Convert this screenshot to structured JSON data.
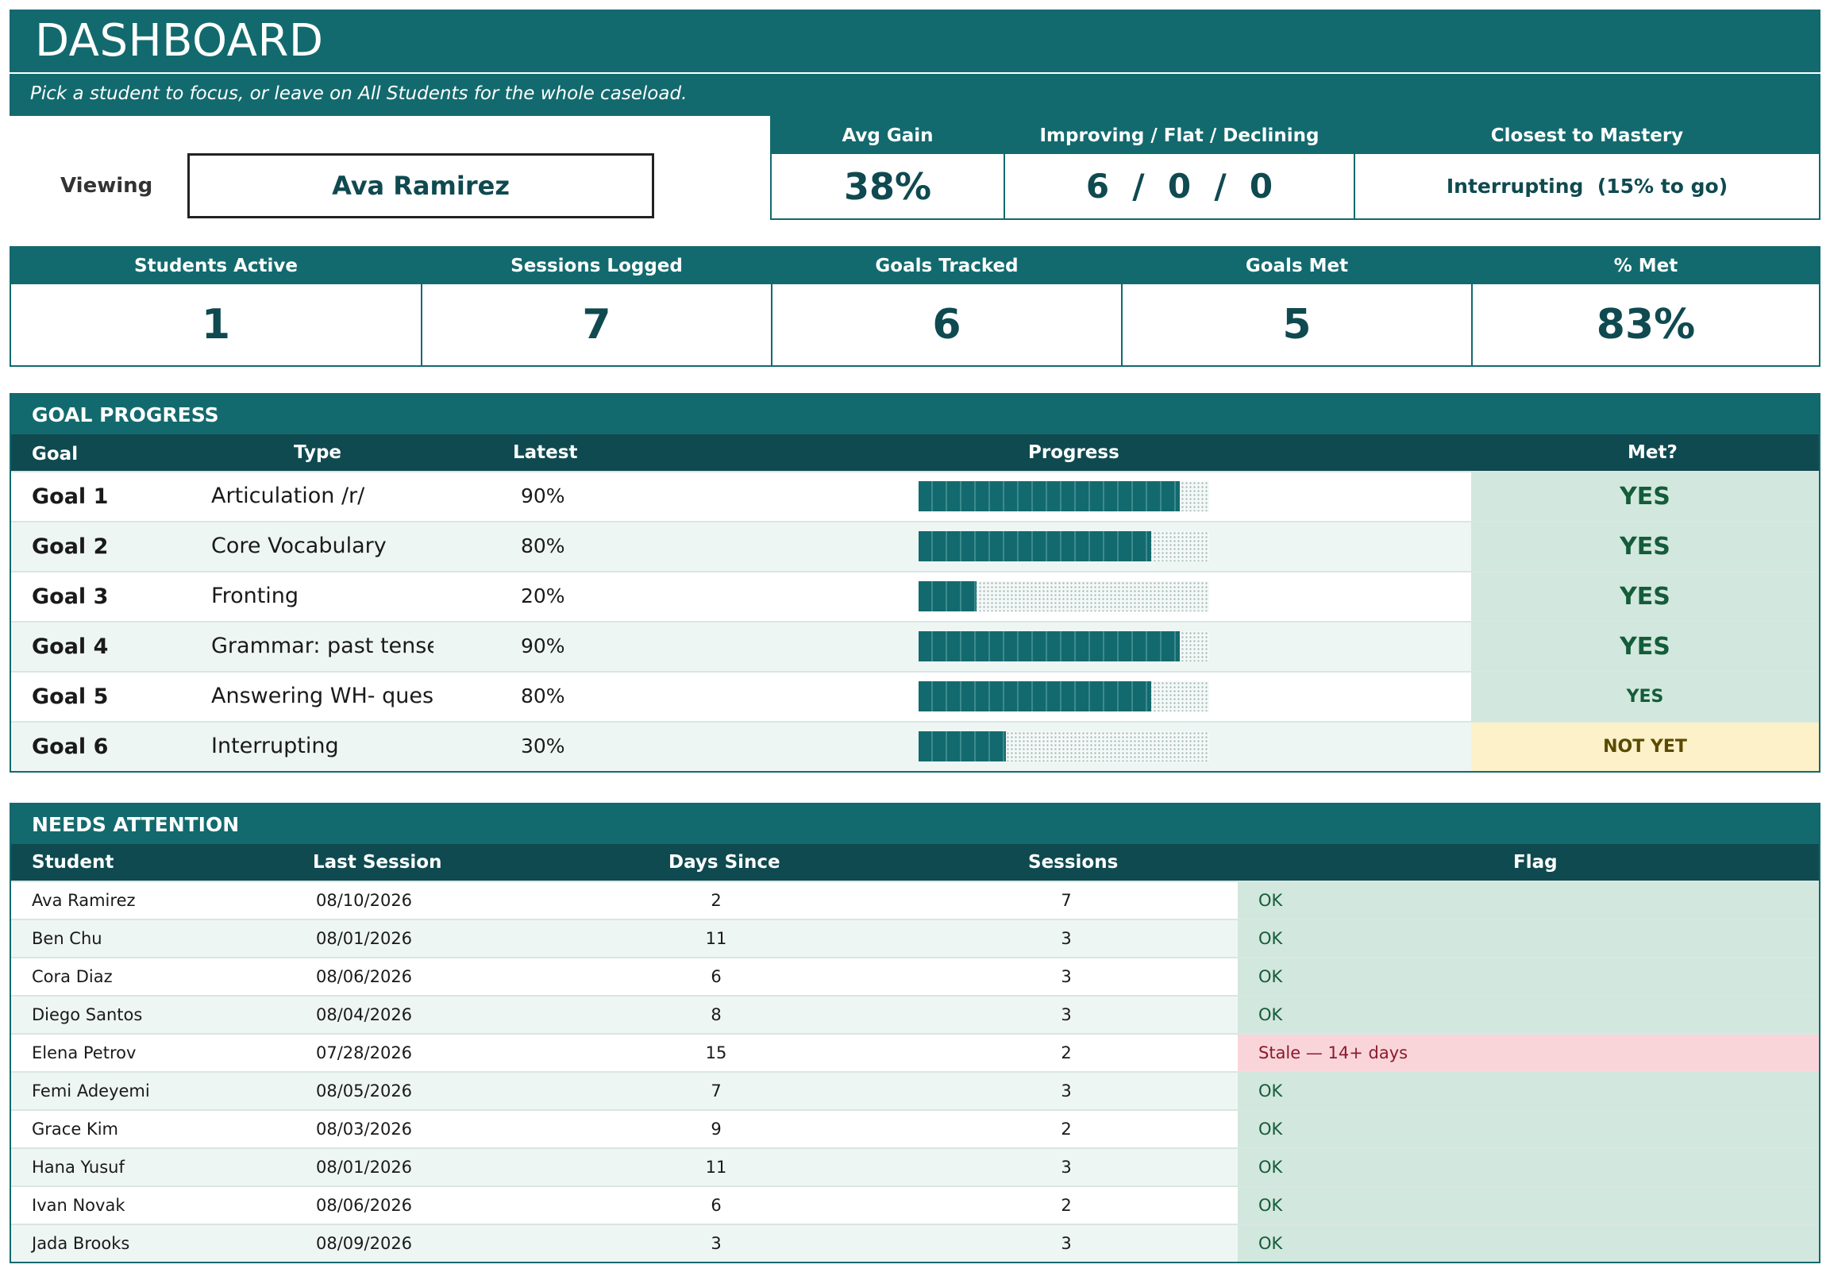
{
  "header": {
    "title": "DASHBOARD",
    "subtitle": "Pick a student to focus, or leave on All Students for the whole caseload."
  },
  "viewing": {
    "label": "Viewing",
    "value": "Ava Ramirez"
  },
  "kpis_top": [
    {
      "label": "Avg Gain",
      "value": "38%"
    },
    {
      "label": "Improving / Flat / Declining",
      "value": "6  /  0  /  0"
    },
    {
      "label": "Closest to Mastery",
      "value": "Interrupting  (15% to go)"
    }
  ],
  "stats": [
    {
      "label": "Students Active",
      "value": "1"
    },
    {
      "label": "Sessions Logged",
      "value": "7"
    },
    {
      "label": "Goals Tracked",
      "value": "6"
    },
    {
      "label": "Goals Met",
      "value": "5"
    },
    {
      "label": "% Met",
      "value": "83%"
    }
  ],
  "goal_progress": {
    "title": "GOAL PROGRESS",
    "columns": {
      "goal": "Goal",
      "type": "Type",
      "latest": "Latest",
      "progress": "Progress",
      "met": "Met?"
    },
    "rows": [
      {
        "goal": "Goal 1",
        "type": "Articulation /r/",
        "latest": "90%",
        "progress": 0.9,
        "met": "YES"
      },
      {
        "goal": "Goal 2",
        "type": "Core Vocabulary",
        "latest": "80%",
        "progress": 0.8,
        "met": "YES"
      },
      {
        "goal": "Goal 3",
        "type": "Fronting",
        "latest": "20%",
        "progress": 0.2,
        "met": "YES"
      },
      {
        "goal": "Goal 4",
        "type": "Grammar: past tense",
        "latest": "90%",
        "progress": 0.9,
        "met": "YES"
      },
      {
        "goal": "Goal 5",
        "type": "Answering WH- quest",
        "latest": "80%",
        "progress": 0.8,
        "met": "YES"
      },
      {
        "goal": "Goal 6",
        "type": "Interrupting",
        "latest": "30%",
        "progress": 0.3,
        "met": "NOT YET"
      }
    ]
  },
  "needs_attention": {
    "title": "NEEDS ATTENTION",
    "columns": {
      "student": "Student",
      "last_session": "Last Session",
      "days_since": "Days Since",
      "sessions": "Sessions",
      "flag": "Flag"
    },
    "rows": [
      {
        "student": "Ava Ramirez",
        "last_session": "08/10/2026",
        "days_since": "2",
        "sessions": "7",
        "flag": "OK"
      },
      {
        "student": "Ben Chu",
        "last_session": "08/01/2026",
        "days_since": "11",
        "sessions": "3",
        "flag": "OK"
      },
      {
        "student": "Cora Diaz",
        "last_session": "08/06/2026",
        "days_since": "6",
        "sessions": "3",
        "flag": "OK"
      },
      {
        "student": "Diego Santos",
        "last_session": "08/04/2026",
        "days_since": "8",
        "sessions": "3",
        "flag": "OK"
      },
      {
        "student": "Elena Petrov",
        "last_session": "07/28/2026",
        "days_since": "15",
        "sessions": "2",
        "flag": "Stale — 14+ days"
      },
      {
        "student": "Femi Adeyemi",
        "last_session": "08/05/2026",
        "days_since": "7",
        "sessions": "3",
        "flag": "OK"
      },
      {
        "student": "Grace Kim",
        "last_session": "08/03/2026",
        "days_since": "9",
        "sessions": "2",
        "flag": "OK"
      },
      {
        "student": "Hana Yusuf",
        "last_session": "08/01/2026",
        "days_since": "11",
        "sessions": "3",
        "flag": "OK"
      },
      {
        "student": "Ivan Novak",
        "last_session": "08/06/2026",
        "days_since": "6",
        "sessions": "2",
        "flag": "OK"
      },
      {
        "student": "Jada Brooks",
        "last_session": "08/09/2026",
        "days_since": "3",
        "sessions": "3",
        "flag": "OK"
      }
    ]
  },
  "colors": {
    "teal": "#136a6e",
    "dark_teal": "#0f4a50",
    "ok_bg": "#d2e7dd",
    "stale_bg": "#f9d5da",
    "not_yet_bg": "#fdf1c9"
  }
}
